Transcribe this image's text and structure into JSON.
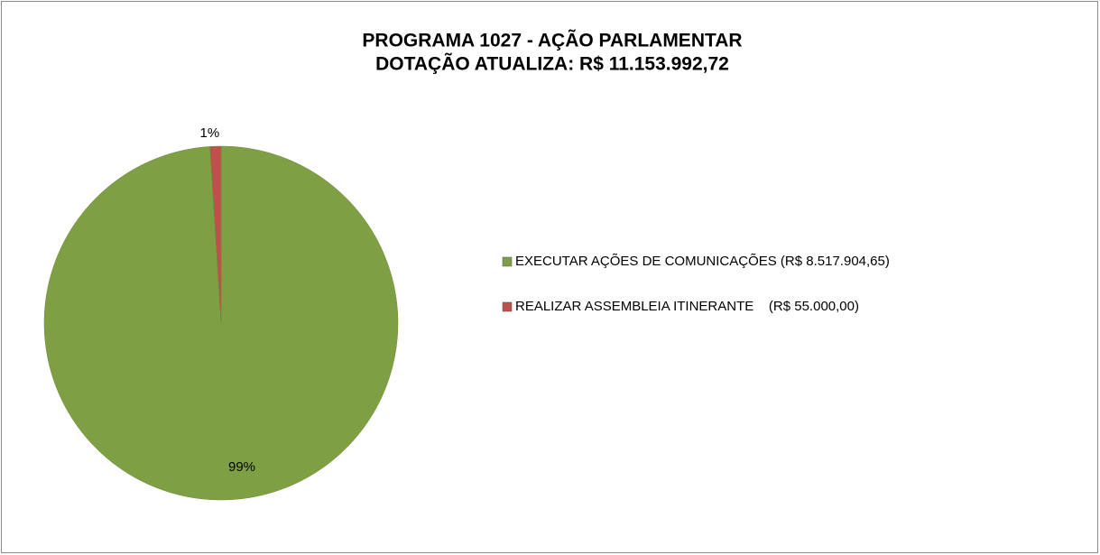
{
  "chart_data": {
    "type": "pie",
    "title": [
      "PROGRAMA 1027 - AÇÃO PARLAMENTAR",
      "DOTAÇÃO ATUALIZA: R$ 11.153.992,72"
    ],
    "categories": [
      "EXECUTAR AÇÕES DE COMUNICAÇÕES (R$ 8.517.904,65)",
      "REALIZAR ASSEMBLEIA ITINERANTE    (R$ 55.000,00)"
    ],
    "values": [
      99,
      1
    ],
    "value_labels": [
      "99%",
      "1%"
    ],
    "colors": [
      "#7f9f45",
      "#c0504d"
    ],
    "legend": "right"
  }
}
